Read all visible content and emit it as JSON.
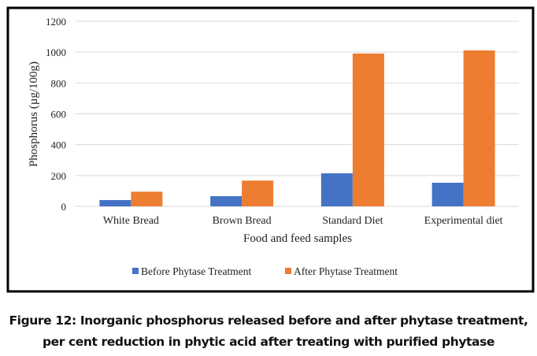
{
  "chart_data": {
    "type": "bar",
    "title": "",
    "xlabel": "Food and feed samples",
    "ylabel": "Phosphorus (µg/100g)",
    "ylim": [
      0,
      1200
    ],
    "yticks": [
      "0",
      "200",
      "400",
      "600",
      "800",
      "1000",
      "1200"
    ],
    "categories": [
      "White Bread",
      "Brown Bread",
      "Standard Diet",
      "Experimental diet"
    ],
    "series": [
      {
        "name": "Before Phytase Treatment",
        "color": "#4472C4",
        "values": [
          41,
          66,
          214,
          153
        ]
      },
      {
        "name": "After Phytase Treatment",
        "color": "#ED7D31",
        "values": [
          95,
          167,
          991,
          1011
        ]
      }
    ],
    "grid": true,
    "legend": "bottom"
  },
  "caption": {
    "line1": "Figure 12: Inorganic phosphorus released before and after phytase treatment,",
    "line2": "per cent reduction in phytic acid after treating with purified phytase"
  }
}
